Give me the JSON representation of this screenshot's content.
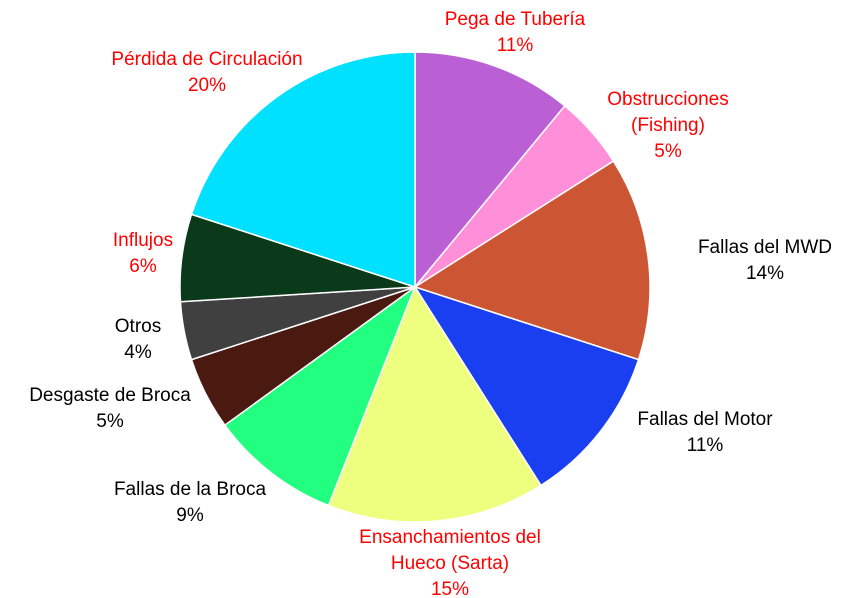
{
  "chart_data": {
    "type": "pie",
    "categories": [
      "Pega de Tubería",
      "Obstrucciones\n(Fishing)",
      "Fallas del MWD",
      "Fallas del Motor",
      "Ensanchamientos del\nHueco (Sarta)",
      "Fallas de la Broca",
      "Desgaste de Broca",
      "Otros",
      "Influjos",
      "Pérdida de Circulación"
    ],
    "values": [
      11,
      5,
      14,
      11,
      15,
      9,
      5,
      4,
      6,
      20
    ],
    "value_labels": [
      "11%",
      "5%",
      "14%",
      "11%",
      "15%",
      "9%",
      "5%",
      "4%",
      "6%",
      "20%"
    ],
    "colors": [
      "#bb5fd4",
      "#ff8fd8",
      "#cc5533",
      "#1a3ff0",
      "#eeff80",
      "#22ff80",
      "#4a1a10",
      "#404040",
      "#0a3a1a",
      "#00e0ff"
    ],
    "label_colors": [
      "#ff0000",
      "#ff0000",
      "#000000",
      "#000000",
      "#ff0000",
      "#000000",
      "#000000",
      "#000000",
      "#ff0000",
      "#ff0000"
    ]
  }
}
